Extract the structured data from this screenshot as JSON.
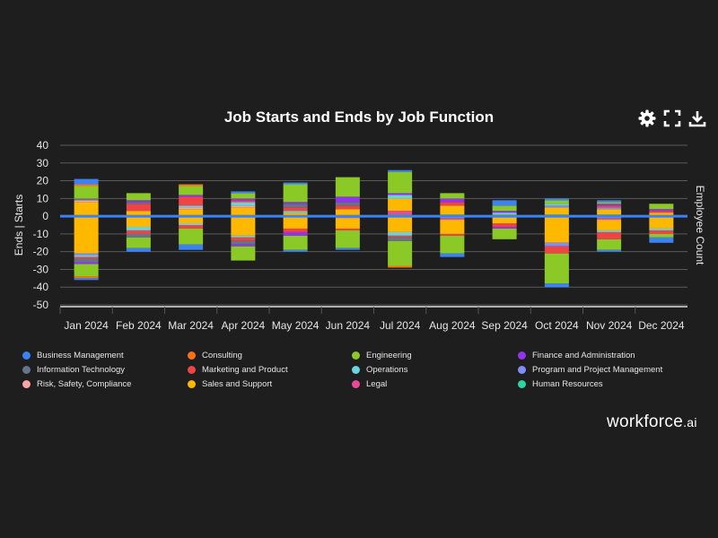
{
  "toolbar": {
    "settings_icon": "gear-icon",
    "fullscreen_icon": "expand-icon",
    "download_icon": "download-icon"
  },
  "brand": {
    "name": "workforce",
    "suffix": ".ai"
  },
  "chart_data": {
    "type": "bar",
    "stacked": true,
    "title": "Job Starts and Ends by Job Function",
    "ylabel": "Ends | Starts",
    "ylabel_right": "Employee Count",
    "ylim": [
      -50,
      40
    ],
    "yticks": [
      40,
      30,
      20,
      10,
      0,
      -10,
      -20,
      -30,
      -40,
      -50
    ],
    "grid": true,
    "legend_position": "bottom",
    "zero_line_color": "#3b82f6",
    "categories": [
      "Jan 2024",
      "Feb 2024",
      "Mar 2024",
      "Apr 2024",
      "May 2024",
      "Jun 2024",
      "Jul 2024",
      "Aug 2024",
      "Sep 2024",
      "Oct 2024",
      "Nov 2024",
      "Dec 2024"
    ],
    "series": [
      {
        "name": "Business Management",
        "color": "#3b82f6",
        "starts": [
          3,
          0,
          0,
          1,
          1,
          0,
          1,
          0,
          3,
          1,
          1,
          0
        ],
        "ends": [
          -1,
          -2,
          -3,
          0,
          -1,
          -1,
          0,
          -2,
          0,
          -2,
          -1,
          -3
        ]
      },
      {
        "name": "Consulting",
        "color": "#f97316",
        "starts": [
          1,
          0,
          1,
          0,
          0,
          0,
          0,
          0,
          0,
          0,
          0,
          0
        ],
        "ends": [
          -1,
          0,
          0,
          0,
          0,
          0,
          -1,
          0,
          0,
          0,
          0,
          0
        ]
      },
      {
        "name": "Engineering",
        "color": "#8bc926",
        "starts": [
          7,
          4,
          5,
          3,
          10,
          11,
          12,
          3,
          3,
          2,
          1,
          3
        ],
        "ends": [
          -7,
          -6,
          -9,
          -8,
          -8,
          -10,
          -14,
          -10,
          -6,
          -17,
          -6,
          -2
        ]
      },
      {
        "name": "Finance and Administration",
        "color": "#9333ea",
        "starts": [
          0,
          1,
          1,
          1,
          1,
          3,
          1,
          2,
          1,
          0,
          1,
          1
        ],
        "ends": [
          -1,
          0,
          0,
          -1,
          -2,
          0,
          0,
          0,
          -1,
          0,
          0,
          0
        ]
      },
      {
        "name": "Information Technology",
        "color": "#64748b",
        "starts": [
          1,
          1,
          0,
          0,
          2,
          2,
          0,
          0,
          0,
          0,
          0,
          0
        ],
        "ends": [
          -2,
          -2,
          0,
          -2,
          0,
          0,
          -2,
          0,
          0,
          0,
          0,
          0
        ]
      },
      {
        "name": "Marketing and Product",
        "color": "#ef4444",
        "starts": [
          0,
          4,
          5,
          1,
          2,
          2,
          0,
          2,
          0,
          0,
          1,
          1
        ],
        "ends": [
          -1,
          -2,
          -2,
          -2,
          -2,
          -1,
          -1,
          -1,
          -2,
          -4,
          -4,
          -2
        ]
      },
      {
        "name": "Operations",
        "color": "#67d4e0",
        "starts": [
          0,
          0,
          1,
          2,
          1,
          0,
          2,
          0,
          1,
          1,
          0,
          0
        ],
        "ends": [
          -1,
          -2,
          -1,
          -1,
          0,
          0,
          -2,
          0,
          0,
          0,
          -1,
          -1
        ]
      },
      {
        "name": "Program and Project Management",
        "color": "#818cf8",
        "starts": [
          0,
          0,
          0,
          0,
          0,
          0,
          0,
          0,
          0,
          1,
          1,
          0
        ],
        "ends": [
          -1,
          0,
          0,
          0,
          0,
          0,
          0,
          0,
          0,
          -2,
          0,
          0
        ]
      },
      {
        "name": "Risk, Safety, Compliance",
        "color": "#fca5a5",
        "starts": [
          1,
          0,
          1,
          1,
          0,
          0,
          0,
          0,
          0,
          0,
          0,
          0
        ],
        "ends": [
          0,
          0,
          0,
          0,
          0,
          0,
          0,
          0,
          0,
          0,
          0,
          0
        ]
      },
      {
        "name": "Sales and Support",
        "color": "#ffb800",
        "starts": [
          8,
          3,
          4,
          5,
          2,
          4,
          7,
          5,
          1,
          4,
          3,
          2
        ],
        "ends": [
          -21,
          -6,
          -4,
          -11,
          -7,
          -6,
          -9,
          -8,
          -4,
          -15,
          -6,
          -7
        ]
      },
      {
        "name": "Legal",
        "color": "#ec4899",
        "starts": [
          0,
          0,
          0,
          0,
          0,
          0,
          2,
          0,
          0,
          0,
          0,
          0
        ],
        "ends": [
          0,
          0,
          0,
          0,
          0,
          -1,
          0,
          -1,
          0,
          0,
          -1,
          0
        ]
      },
      {
        "name": "Human Resources",
        "color": "#2dd4a0",
        "starts": [
          0,
          0,
          0,
          0,
          0,
          0,
          1,
          1,
          0,
          1,
          1,
          0
        ],
        "ends": [
          0,
          0,
          0,
          0,
          0,
          0,
          0,
          -1,
          0,
          0,
          -1,
          0
        ]
      }
    ]
  }
}
